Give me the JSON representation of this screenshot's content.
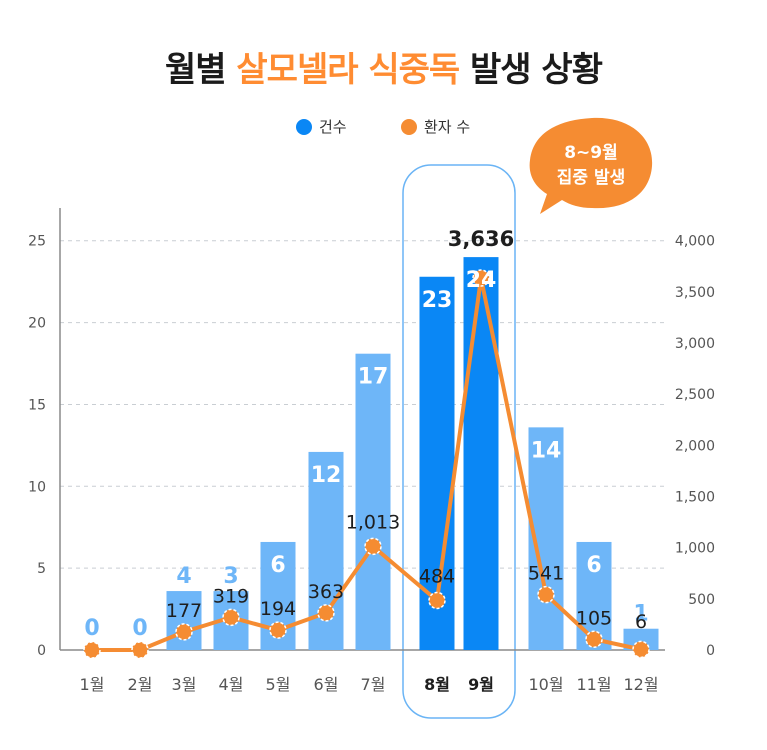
{
  "title": {
    "prefix": "월별",
    "highlight": "살모넬라 식중독",
    "suffix": "발생 상황"
  },
  "legend": {
    "cases_label": "건수",
    "patients_label": "환자 수"
  },
  "callout": {
    "line1": "8~9월",
    "line2": "집중 발생"
  },
  "colors": {
    "bar_light": "#6eb6f8",
    "bar_dark": "#0a87f5",
    "line": "#f58c32",
    "label_light": "#6eb6f8",
    "text_dark": "#1e1e1e"
  },
  "chart_data": {
    "type": "bar",
    "categories": [
      "1월",
      "2월",
      "3월",
      "4월",
      "5월",
      "6월",
      "7월",
      "8월",
      "9월",
      "10월",
      "11월",
      "12월"
    ],
    "series": [
      {
        "name": "건수",
        "type": "bar",
        "axis": "left",
        "values": [
          0,
          0,
          4,
          3,
          6,
          12,
          17,
          23,
          24,
          14,
          6,
          1
        ]
      },
      {
        "name": "환자 수",
        "type": "line",
        "axis": "right",
        "values": [
          0,
          0,
          177,
          319,
          194,
          363,
          1013,
          484,
          3636,
          541,
          105,
          6
        ]
      }
    ],
    "y_left": {
      "range": [
        0,
        27
      ],
      "ticks": [
        0,
        5,
        10,
        15,
        20,
        25
      ]
    },
    "y_right": {
      "range": [
        0,
        4320
      ],
      "ticks": [
        "0",
        "500",
        "1,000",
        "1,500",
        "2,000",
        "2,500",
        "3,000",
        "3,500",
        "4,000"
      ]
    },
    "case_labels": [
      "0",
      "0",
      "4",
      "3",
      "6",
      "12",
      "17",
      "23",
      "24",
      "14",
      "6",
      "1"
    ],
    "patient_labels": [
      "",
      "",
      "177",
      "319",
      "194",
      "363",
      "1,013",
      "484",
      "3,636",
      "541",
      "105",
      "6"
    ],
    "bar_heights_shown": [
      0,
      0,
      3.6,
      3.6,
      6.6,
      12.1,
      18.1,
      22.8,
      24.0,
      13.6,
      6.6,
      1.3
    ],
    "highlight_months": [
      "8월",
      "9월"
    ],
    "grid": true,
    "legend_position": "top-center"
  }
}
